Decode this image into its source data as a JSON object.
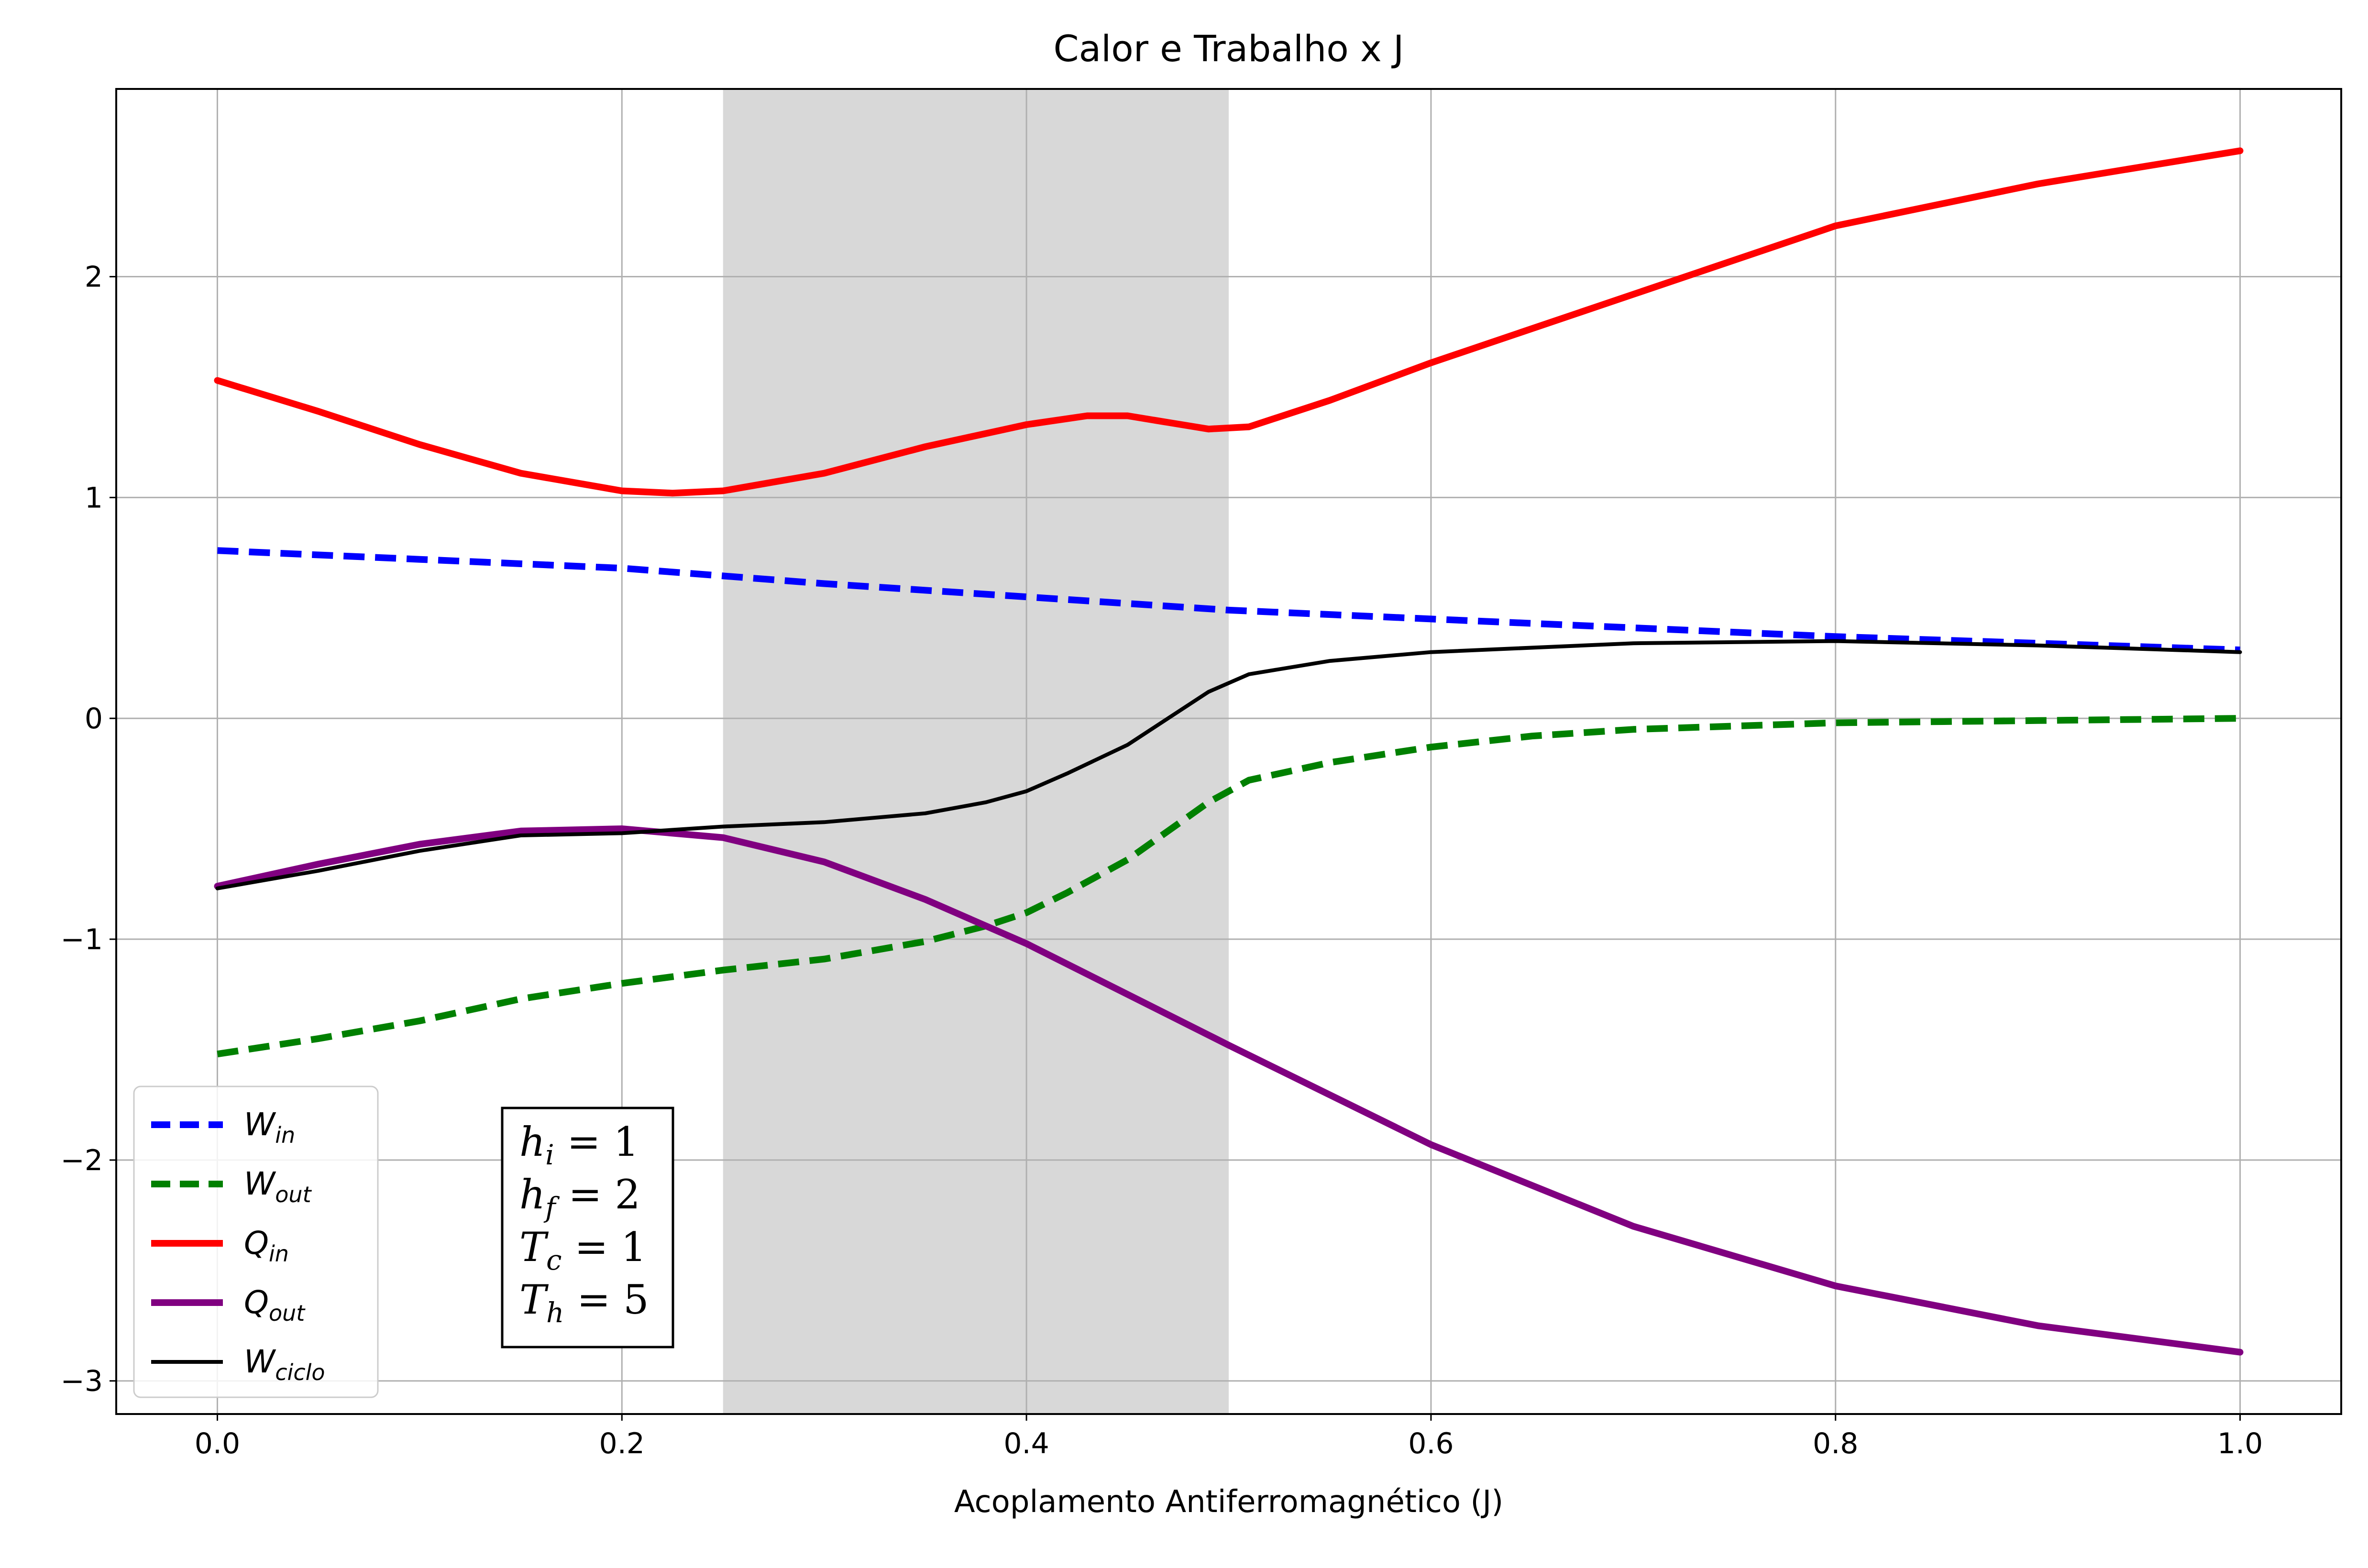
{
  "chart_data": {
    "type": "line",
    "title": "Calor e Trabalho x J",
    "xlabel": "Acoplamento Antiferromagnético (J)",
    "ylabel": "",
    "xlim": [
      -0.05,
      1.05
    ],
    "ylim": [
      -3.15,
      2.85
    ],
    "xticks": [
      0.0,
      0.2,
      0.4,
      0.6,
      0.8,
      1.0
    ],
    "xtick_labels": [
      "0.0",
      "0.2",
      "0.4",
      "0.6",
      "0.8",
      "1.0"
    ],
    "yticks": [
      -3,
      -2,
      -1,
      0,
      1,
      2
    ],
    "ytick_labels": [
      "−3",
      "−2",
      "−1",
      "0",
      "1",
      "2"
    ],
    "grid": true,
    "legend_position": "lower-left",
    "shaded_region": {
      "x_start": 0.25,
      "x_end": 0.5,
      "color": "#d8d8d8"
    },
    "series": [
      {
        "name": "W_in",
        "legend_main": "W",
        "legend_sub": "in",
        "color": "#0000ff",
        "style": "dashed",
        "width": "thick",
        "x": [
          0,
          0.1,
          0.2,
          0.3,
          0.4,
          0.5,
          0.6,
          0.7,
          0.8,
          0.9,
          1.0
        ],
        "y": [
          0.76,
          0.72,
          0.68,
          0.61,
          0.55,
          0.49,
          0.45,
          0.41,
          0.37,
          0.34,
          0.31
        ]
      },
      {
        "name": "W_out",
        "legend_main": "W",
        "legend_sub": "out",
        "color": "#008000",
        "style": "dashed",
        "width": "thick",
        "x": [
          0,
          0.05,
          0.1,
          0.15,
          0.2,
          0.25,
          0.3,
          0.35,
          0.38,
          0.4,
          0.42,
          0.45,
          0.47,
          0.49,
          0.51,
          0.55,
          0.6,
          0.65,
          0.7,
          0.8,
          0.9,
          1.0
        ],
        "y": [
          -1.52,
          -1.45,
          -1.37,
          -1.27,
          -1.2,
          -1.14,
          -1.09,
          -1.01,
          -0.94,
          -0.88,
          -0.79,
          -0.64,
          -0.51,
          -0.38,
          -0.28,
          -0.2,
          -0.13,
          -0.08,
          -0.05,
          -0.02,
          -0.01,
          0.0
        ]
      },
      {
        "name": "Q_in",
        "legend_main": "Q",
        "legend_sub": "in",
        "color": "#ff0000",
        "style": "solid",
        "width": "thick",
        "x": [
          0,
          0.05,
          0.1,
          0.15,
          0.2,
          0.225,
          0.25,
          0.3,
          0.35,
          0.4,
          0.43,
          0.45,
          0.47,
          0.49,
          0.51,
          0.55,
          0.6,
          0.7,
          0.8,
          0.9,
          1.0
        ],
        "y": [
          1.53,
          1.39,
          1.24,
          1.11,
          1.03,
          1.02,
          1.03,
          1.11,
          1.23,
          1.33,
          1.37,
          1.37,
          1.34,
          1.31,
          1.32,
          1.44,
          1.61,
          1.92,
          2.23,
          2.42,
          2.57
        ]
      },
      {
        "name": "Q_out",
        "legend_main": "Q",
        "legend_sub": "out",
        "color": "#800080",
        "style": "solid",
        "width": "thick",
        "x": [
          0,
          0.05,
          0.1,
          0.15,
          0.2,
          0.25,
          0.3,
          0.35,
          0.4,
          0.5,
          0.6,
          0.7,
          0.8,
          0.9,
          1.0
        ],
        "y": [
          -0.76,
          -0.66,
          -0.57,
          -0.51,
          -0.5,
          -0.54,
          -0.65,
          -0.82,
          -1.02,
          -1.48,
          -1.93,
          -2.3,
          -2.57,
          -2.75,
          -2.87
        ]
      },
      {
        "name": "W_ciclo",
        "legend_main": "W",
        "legend_sub": "ciclo",
        "color": "#000000",
        "style": "solid",
        "width": "thin",
        "x": [
          0,
          0.05,
          0.1,
          0.15,
          0.2,
          0.25,
          0.3,
          0.35,
          0.38,
          0.4,
          0.42,
          0.45,
          0.47,
          0.49,
          0.51,
          0.55,
          0.6,
          0.7,
          0.8,
          0.9,
          1.0
        ],
        "y": [
          -0.77,
          -0.69,
          -0.6,
          -0.53,
          -0.52,
          -0.49,
          -0.47,
          -0.43,
          -0.38,
          -0.33,
          -0.25,
          -0.12,
          0.0,
          0.12,
          0.2,
          0.26,
          0.3,
          0.34,
          0.35,
          0.33,
          0.3
        ]
      }
    ],
    "annotation": [
      {
        "main": "h",
        "sub": "i",
        "rest": " = 1"
      },
      {
        "main": "h",
        "sub": "f",
        "rest": " = 2"
      },
      {
        "main": "T",
        "sub": "c",
        "rest": " = 1"
      },
      {
        "main": "T",
        "sub": "h",
        "rest": " = 5"
      }
    ]
  }
}
